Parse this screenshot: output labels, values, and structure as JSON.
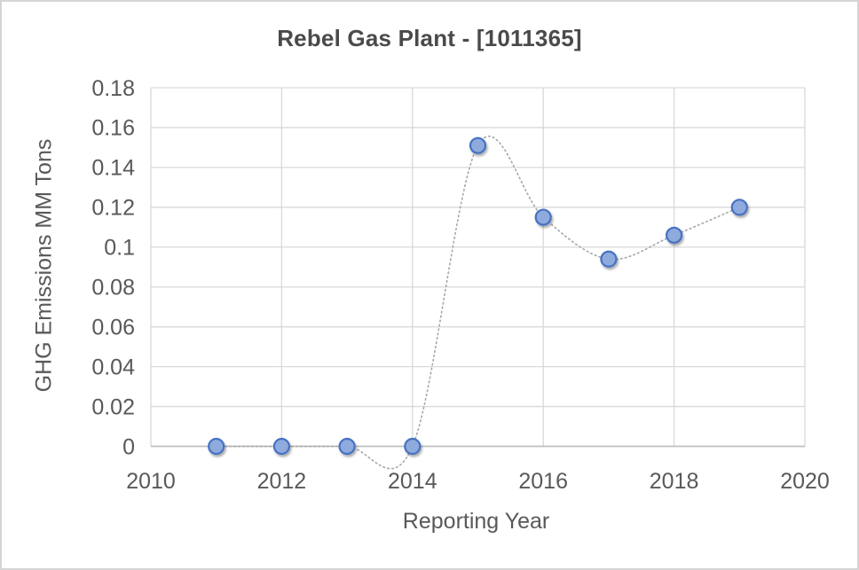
{
  "chart": {
    "title": "Rebel Gas Plant - [1011365]",
    "xlabel": "Reporting Year",
    "ylabel": "GHG Emissions MM Tons"
  },
  "chart_data": {
    "type": "scatter",
    "title": "Rebel Gas Plant - [1011365]",
    "xlabel": "Reporting Year",
    "ylabel": "GHG Emissions MM Tons",
    "x": [
      2011,
      2012,
      2013,
      2014,
      2015,
      2016,
      2017,
      2018,
      2019
    ],
    "y": [
      0,
      0,
      0,
      0,
      0.151,
      0.115,
      0.094,
      0.106,
      0.12
    ],
    "xlim": [
      2010,
      2020
    ],
    "ylim": [
      0,
      0.18
    ],
    "xticks": [
      2010,
      2012,
      2014,
      2016,
      2018,
      2020
    ],
    "yticks": [
      0,
      0.02,
      0.04,
      0.06,
      0.08,
      0.1,
      0.12,
      0.14,
      0.16,
      0.18
    ],
    "grid": true,
    "legend": "none",
    "line_style": "dotted-smooth",
    "line_color": "#a6a6a6",
    "marker_fill": "#8faadc",
    "marker_stroke": "#4472c4",
    "grid_color": "#d9d9d9",
    "axis_color": "#bfbfbf",
    "text_color": "#595959",
    "title_color": "#4a4a4a"
  }
}
